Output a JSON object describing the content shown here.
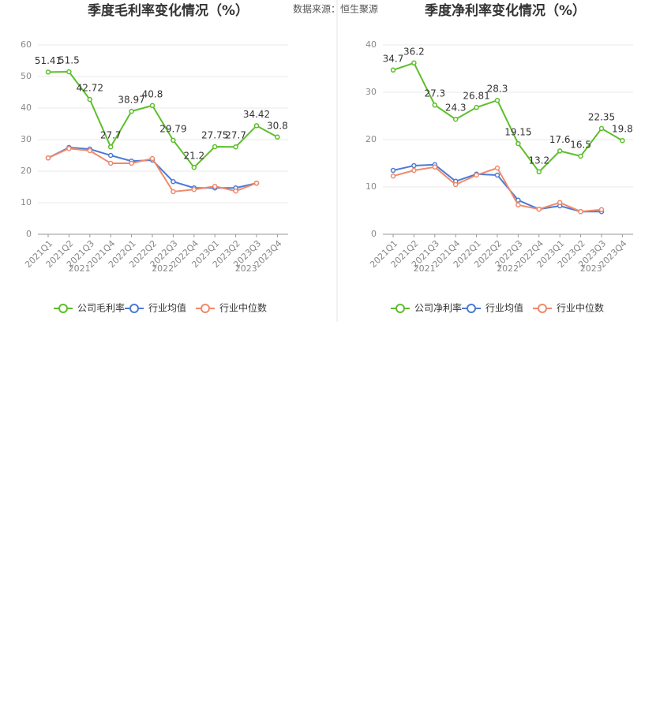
{
  "source": "数据来源：恒生聚源",
  "chart_data": [
    {
      "type": "line",
      "title": "季度毛利率变化情况（%）",
      "categories": [
        "2021Q1",
        "2021Q2",
        "2021Q3",
        "2021Q4",
        "2022Q1",
        "2022Q2",
        "2022Q3",
        "2022Q4",
        "2023Q1",
        "2023Q2",
        "2023Q3",
        "2023Q4"
      ],
      "years": [
        "2021",
        "2022",
        "2023"
      ],
      "ylim": [
        0,
        60
      ],
      "yticks": [
        0,
        10,
        20,
        30,
        40,
        50,
        60
      ],
      "grid": true,
      "series": [
        {
          "name": "公司毛利率",
          "color": "#5cbf2a",
          "values": [
            51.41,
            51.5,
            42.72,
            27.7,
            38.97,
            40.8,
            29.79,
            21.2,
            27.75,
            27.7,
            34.42,
            30.8
          ]
        },
        {
          "name": "行业均值",
          "color": "#4a7bd6",
          "values": [
            24.2,
            27.5,
            27.0,
            25.0,
            23.2,
            23.5,
            16.7,
            14.7,
            14.7,
            14.7,
            16.2,
            null
          ]
        },
        {
          "name": "行业中位数",
          "color": "#f08a6a",
          "values": [
            24.2,
            27.2,
            26.5,
            22.5,
            22.5,
            24.0,
            13.5,
            14.2,
            15.2,
            13.7,
            16.2,
            null
          ]
        }
      ]
    },
    {
      "type": "line",
      "title": "季度净利率变化情况（%）",
      "categories": [
        "2021Q1",
        "2021Q2",
        "2021Q3",
        "2021Q4",
        "2022Q1",
        "2022Q2",
        "2022Q3",
        "2022Q4",
        "2023Q1",
        "2023Q2",
        "2023Q3",
        "2023Q4"
      ],
      "years": [
        "2021",
        "2022",
        "2023"
      ],
      "ylim": [
        0,
        40
      ],
      "yticks": [
        0,
        10,
        20,
        30,
        40
      ],
      "grid": true,
      "series": [
        {
          "name": "公司净利率",
          "color": "#5cbf2a",
          "values": [
            34.7,
            36.2,
            27.3,
            24.3,
            26.81,
            28.3,
            19.15,
            13.2,
            17.6,
            16.5,
            22.35,
            19.8
          ]
        },
        {
          "name": "行业均值",
          "color": "#4a7bd6",
          "values": [
            13.5,
            14.5,
            14.7,
            11.2,
            12.7,
            12.5,
            7.2,
            5.3,
            6.0,
            4.8,
            4.8,
            null
          ]
        },
        {
          "name": "行业中位数",
          "color": "#f08a6a",
          "values": [
            12.3,
            13.5,
            14.2,
            10.5,
            12.5,
            14.0,
            6.2,
            5.3,
            6.7,
            4.8,
            5.2,
            null
          ]
        }
      ]
    }
  ]
}
